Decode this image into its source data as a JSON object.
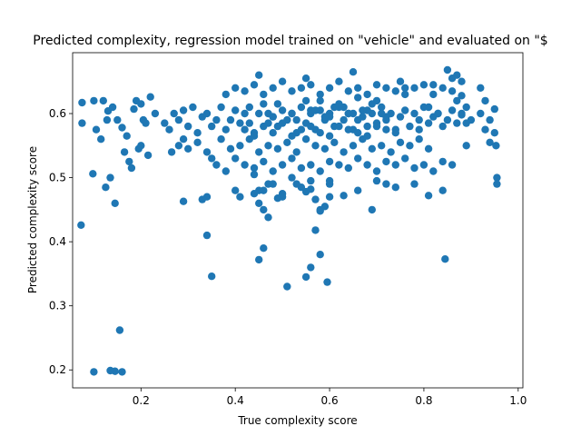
{
  "chart_data": {
    "type": "scatter",
    "title": "Predicted complexity, regression model trained on \"vehicle\" and evaluated on \"$",
    "xlabel": "True complexity score",
    "ylabel": "Predicted complexity score",
    "xlim": [
      0.055,
      1.01
    ],
    "ylim": [
      0.172,
      0.695
    ],
    "xticks": [
      0.2,
      0.4,
      0.6,
      0.8,
      1.0
    ],
    "xtick_labels": [
      "0.2",
      "0.4",
      "0.6",
      "0.8",
      "1.0"
    ],
    "yticks": [
      0.2,
      0.3,
      0.4,
      0.5,
      0.6
    ],
    "ytick_labels": [
      "0.2",
      "0.3",
      "0.4",
      "0.5",
      "0.6"
    ],
    "grid": false,
    "marker_color": "#1f77b4",
    "series": [
      {
        "x": [
          0.075,
          0.075,
          0.073,
          0.1,
          0.098,
          0.12,
          0.13,
          0.128,
          0.105,
          0.115,
          0.14,
          0.15,
          0.16,
          0.17,
          0.185,
          0.19,
          0.2,
          0.205,
          0.21,
          0.22,
          0.23,
          0.175,
          0.18,
          0.195,
          0.215,
          0.135,
          0.145,
          0.165,
          0.125,
          0.2,
          0.25,
          0.26,
          0.27,
          0.28,
          0.29,
          0.3,
          0.31,
          0.32,
          0.33,
          0.34,
          0.35,
          0.36,
          0.37,
          0.38,
          0.39,
          0.4,
          0.41,
          0.42,
          0.43,
          0.44,
          0.45,
          0.46,
          0.47,
          0.48,
          0.49,
          0.5,
          0.51,
          0.52,
          0.53,
          0.54,
          0.55,
          0.56,
          0.57,
          0.58,
          0.59,
          0.6,
          0.61,
          0.62,
          0.63,
          0.64,
          0.65,
          0.66,
          0.67,
          0.68,
          0.69,
          0.7,
          0.71,
          0.72,
          0.73,
          0.74,
          0.75,
          0.76,
          0.77,
          0.78,
          0.79,
          0.8,
          0.81,
          0.82,
          0.83,
          0.84,
          0.85,
          0.86,
          0.87,
          0.88,
          0.89,
          0.9,
          0.92,
          0.93,
          0.94,
          0.95,
          0.955,
          0.955,
          0.953,
          0.92,
          0.93,
          0.94,
          0.95,
          0.82,
          0.83,
          0.86,
          0.87,
          0.88,
          0.89,
          0.76,
          0.79,
          0.81,
          0.85,
          0.87,
          0.88,
          0.89,
          0.265,
          0.28,
          0.29,
          0.3,
          0.32,
          0.34,
          0.35,
          0.37,
          0.39,
          0.41,
          0.43,
          0.45,
          0.47,
          0.49,
          0.51,
          0.53,
          0.55,
          0.57,
          0.59,
          0.61,
          0.63,
          0.65,
          0.67,
          0.69,
          0.71,
          0.73,
          0.75,
          0.77,
          0.79,
          0.81,
          0.36,
          0.38,
          0.4,
          0.42,
          0.44,
          0.46,
          0.48,
          0.5,
          0.52,
          0.54,
          0.56,
          0.58,
          0.6,
          0.62,
          0.64,
          0.66,
          0.68,
          0.7,
          0.72,
          0.74,
          0.76,
          0.78,
          0.8,
          0.82,
          0.84,
          0.86,
          0.44,
          0.48,
          0.52,
          0.56,
          0.38,
          0.4,
          0.42,
          0.44,
          0.46,
          0.48,
          0.5,
          0.52,
          0.54,
          0.56,
          0.58,
          0.6,
          0.62,
          0.64,
          0.66,
          0.68,
          0.7,
          0.72,
          0.74,
          0.76,
          0.78,
          0.8,
          0.82,
          0.84,
          0.86,
          0.88,
          0.45,
          0.55,
          0.65,
          0.75,
          0.42,
          0.44,
          0.46,
          0.48,
          0.5,
          0.52,
          0.54,
          0.56,
          0.58,
          0.6,
          0.62,
          0.64,
          0.66,
          0.68,
          0.7,
          0.72,
          0.74,
          0.58,
          0.62,
          0.66,
          0.7,
          0.46,
          0.5,
          0.54,
          0.66,
          0.53,
          0.5,
          0.6,
          0.45,
          0.6,
          0.48,
          0.52,
          0.56,
          0.6,
          0.64,
          0.68,
          0.72,
          0.49,
          0.55,
          0.63,
          0.69,
          0.47,
          0.57,
          0.61,
          0.67,
          0.71,
          0.43,
          0.53,
          0.59,
          0.65,
          0.29,
          0.33,
          0.34,
          0.4,
          0.41,
          0.44,
          0.45,
          0.47,
          0.49,
          0.55,
          0.56,
          0.57,
          0.58,
          0.59,
          0.6,
          0.63,
          0.69,
          0.7,
          0.72,
          0.74,
          0.78,
          0.81,
          0.84,
          0.47,
          0.46,
          0.58,
          0.35,
          0.34,
          0.56,
          0.55,
          0.51,
          0.58,
          0.595,
          0.57,
          0.845,
          0.46,
          0.45,
          0.155,
          0.145,
          0.135,
          0.1,
          0.16
        ],
        "y": [
          0.617,
          0.585,
          0.426,
          0.62,
          0.506,
          0.62,
          0.604,
          0.59,
          0.575,
          0.56,
          0.61,
          0.59,
          0.578,
          0.565,
          0.607,
          0.62,
          0.615,
          0.59,
          0.585,
          0.626,
          0.6,
          0.525,
          0.515,
          0.545,
          0.535,
          0.5,
          0.46,
          0.54,
          0.485,
          0.55,
          0.585,
          0.575,
          0.6,
          0.59,
          0.605,
          0.58,
          0.61,
          0.57,
          0.595,
          0.6,
          0.58,
          0.59,
          0.61,
          0.575,
          0.59,
          0.605,
          0.585,
          0.6,
          0.61,
          0.57,
          0.6,
          0.615,
          0.585,
          0.595,
          0.58,
          0.605,
          0.59,
          0.6,
          0.57,
          0.61,
          0.585,
          0.6,
          0.575,
          0.605,
          0.59,
          0.6,
          0.58,
          0.61,
          0.59,
          0.6,
          0.575,
          0.59,
          0.605,
          0.58,
          0.6,
          0.585,
          0.61,
          0.59,
          0.6,
          0.575,
          0.595,
          0.605,
          0.58,
          0.6,
          0.59,
          0.61,
          0.585,
          0.595,
          0.6,
          0.58,
          0.59,
          0.605,
          0.585,
          0.6,
          0.61,
          0.59,
          0.6,
          0.575,
          0.59,
          0.607,
          0.5,
          0.49,
          0.55,
          0.64,
          0.62,
          0.555,
          0.57,
          0.645,
          0.6,
          0.655,
          0.62,
          0.598,
          0.585,
          0.64,
          0.575,
          0.61,
          0.668,
          0.66,
          0.628,
          0.55,
          0.54,
          0.55,
          0.56,
          0.545,
          0.555,
          0.54,
          0.53,
          0.56,
          0.545,
          0.55,
          0.56,
          0.54,
          0.55,
          0.545,
          0.555,
          0.54,
          0.56,
          0.55,
          0.545,
          0.555,
          0.54,
          0.55,
          0.56,
          0.545,
          0.55,
          0.54,
          0.555,
          0.55,
          0.56,
          0.545,
          0.52,
          0.51,
          0.53,
          0.52,
          0.515,
          0.525,
          0.51,
          0.52,
          0.53,
          0.515,
          0.52,
          0.51,
          0.525,
          0.52,
          0.515,
          0.53,
          0.52,
          0.51,
          0.525,
          0.52,
          0.53,
          0.515,
          0.52,
          0.51,
          0.525,
          0.52,
          0.505,
          0.49,
          0.5,
          0.495,
          0.63,
          0.64,
          0.635,
          0.645,
          0.63,
          0.64,
          0.65,
          0.635,
          0.64,
          0.645,
          0.63,
          0.64,
          0.65,
          0.635,
          0.64,
          0.63,
          0.645,
          0.64,
          0.635,
          0.63,
          0.64,
          0.645,
          0.63,
          0.64,
          0.635,
          0.65,
          0.66,
          0.655,
          0.665,
          0.65,
          0.575,
          0.565,
          0.58,
          0.57,
          0.585,
          0.565,
          0.575,
          0.58,
          0.57,
          0.565,
          0.58,
          0.575,
          0.57,
          0.565,
          0.58,
          0.575,
          0.57,
          0.62,
          0.615,
          0.625,
          0.62,
          0.48,
          0.475,
          0.485,
          0.48,
          0.49,
          0.47,
          0.495,
          0.48,
          0.49,
          0.595,
          0.6,
          0.605,
          0.595,
          0.6,
          0.605,
          0.595,
          0.615,
          0.62,
          0.61,
          0.615,
          0.6,
          0.605,
          0.61,
          0.595,
          0.6,
          0.585,
          0.59,
          0.595,
          0.6,
          0.463,
          0.466,
          0.47,
          0.48,
          0.47,
          0.475,
          0.46,
          0.49,
          0.468,
          0.478,
          0.482,
          0.466,
          0.45,
          0.455,
          0.47,
          0.472,
          0.45,
          0.495,
          0.49,
          0.485,
          0.49,
          0.472,
          0.48,
          0.438,
          0.45,
          0.448,
          0.346,
          0.41,
          0.36,
          0.345,
          0.33,
          0.38,
          0.337,
          0.418,
          0.373,
          0.39,
          0.372,
          0.262,
          0.198,
          0.199,
          0.197,
          0.197
        ]
      }
    ]
  }
}
